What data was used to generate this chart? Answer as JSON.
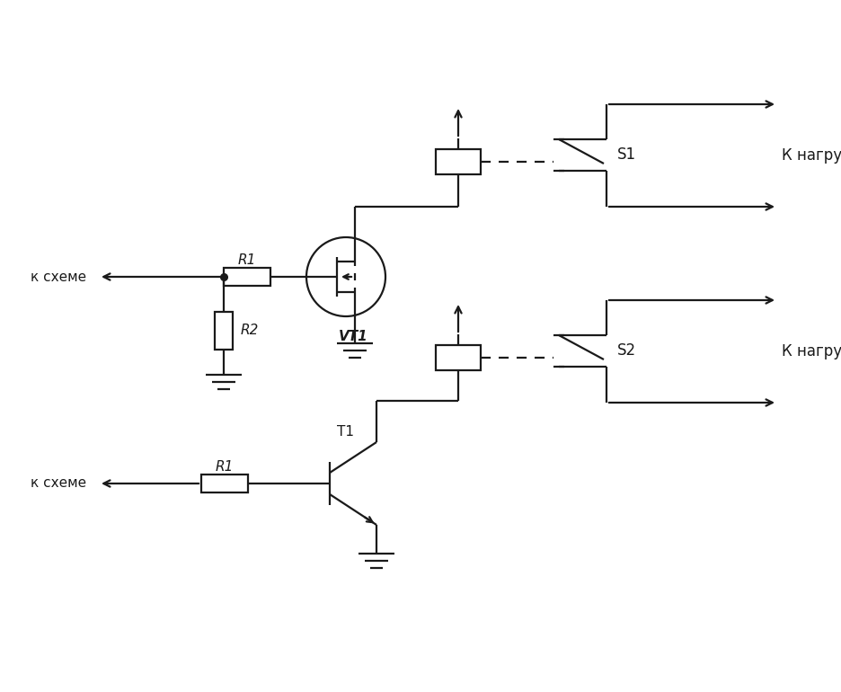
{
  "bg_color": "#ffffff",
  "line_color": "#1a1a1a",
  "line_width": 1.6,
  "fig_width": 9.36,
  "fig_height": 7.7,
  "dpi": 100,
  "labels": {
    "k_scheme_top": "к схеме",
    "k_scheme_bottom": "к схеме",
    "R1_top": "R1",
    "R2_top": "R2",
    "VT1": "VT1",
    "T1": "T1",
    "R1_bottom": "R1",
    "S1": "S1",
    "S2": "S2",
    "k_nagruzke_top": "К нагрузке",
    "k_nagruzke_bottom": "К нагрузке"
  },
  "xlim": [
    0,
    9.36
  ],
  "ylim": [
    0,
    7.7
  ]
}
